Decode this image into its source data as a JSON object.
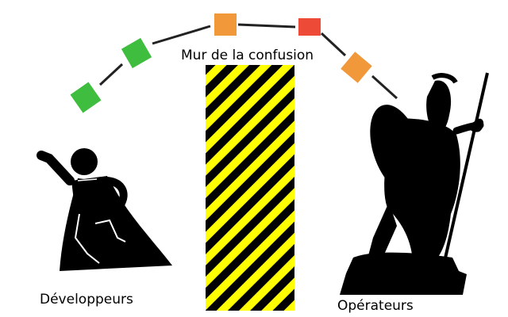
{
  "labels": {
    "wall": "Mur de la confusion",
    "developers": "Développeurs",
    "operators": "Opérateurs"
  },
  "colors": {
    "hazard_yellow": "#ffff00",
    "hazard_black": "#000000",
    "green": "#3ebd3e",
    "orange": "#f0983a",
    "red": "#ee4a38"
  },
  "flow_boxes": [
    {
      "color": "green"
    },
    {
      "color": "green"
    },
    {
      "color": "orange"
    },
    {
      "color": "red"
    },
    {
      "color": "orange"
    }
  ],
  "icons": {
    "developer": "superhero-developer-icon",
    "operator": "spartan-warrior-icon",
    "wall": "hazard-wall"
  }
}
